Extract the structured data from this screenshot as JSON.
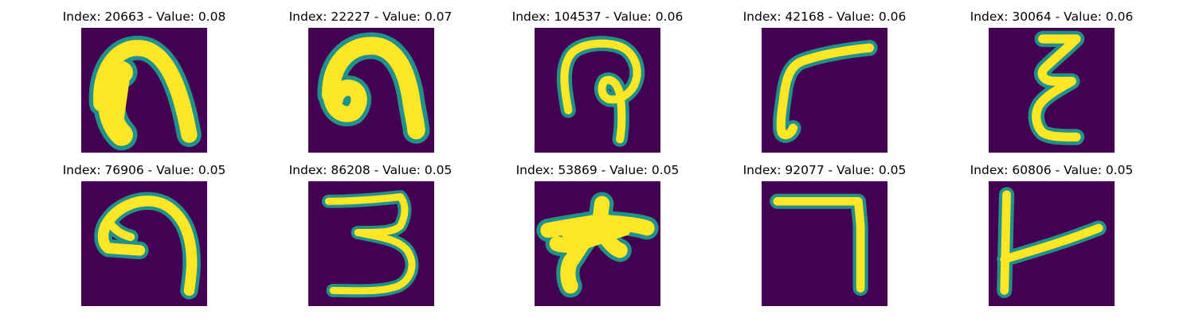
{
  "figure": {
    "panels": [
      {
        "title": "Index: 20663 - Value: 0.08",
        "glyph": "arch-filled"
      },
      {
        "title": "Index: 22227 - Value: 0.07",
        "glyph": "arch-curl"
      },
      {
        "title": "Index: 104537 - Value: 0.06",
        "glyph": "loop-stem"
      },
      {
        "title": "Index: 42168 - Value: 0.06",
        "glyph": "corner-hook"
      },
      {
        "title": "Index: 30064 - Value: 0.06",
        "glyph": "zigzag"
      },
      {
        "title": "Index: 76906 - Value: 0.05",
        "glyph": "spiral-hook"
      },
      {
        "title": "Index: 86208 - Value: 0.05",
        "glyph": "three"
      },
      {
        "title": "Index: 53869 - Value: 0.05",
        "glyph": "star-blob"
      },
      {
        "title": "Index: 92077 - Value: 0.05",
        "glyph": "seven"
      },
      {
        "title": "Index: 60806 - Value: 0.05",
        "glyph": "t-branch"
      }
    ],
    "colors": {
      "background": "#440154",
      "edge": "#21918c",
      "stroke": "#fde725"
    }
  }
}
